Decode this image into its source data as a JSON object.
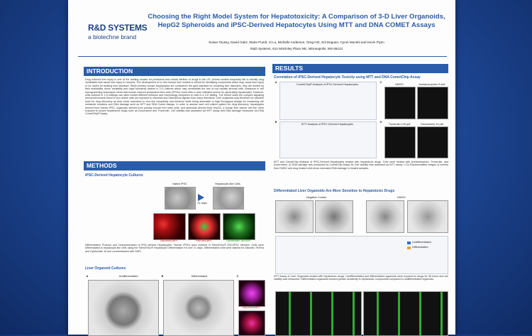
{
  "header": {
    "logo_main": "R&D SYSTEMS",
    "logo_sub": "a biotechne brand",
    "title": "Choosing the Right Model System for Hepatotoxicity: A Comparison of 3-D Liver Organoids, HepG2 Spheroids and iPSC-Derived Hepatocytes Using MTT and DNA COMET Assays",
    "authors": "Susan Tousey, David Gaitz, Marie Pundt, Xi Lu, Michelle Anderson, Greg Hirt, Sol Deguan, Cyrus Munshi and Kevin Flynn",
    "affiliation": "R&D Systems, 614 McKinley Place NE, Minneapolis, MN 55413"
  },
  "introduction": {
    "heading": "INTRODUCTION",
    "text": "Drug induced liver injury is one of the leading causes for preclinical and clinical attrition of drugs in the US. Animal models frequently fail to identify drug candidates that cause liver injury in humans. The development of in vitro human liver models is critical for identifying compounds which may cause liver injury or be useful for treating liver diseases. While primary human hepatocytes are considered the gold standard for modeling liver disorders, they are limited by their availability, donor variability and rapid functional decline in 2-D cultures which may necessitate the use of non-hepatic stromal cells. Advances in cell reprogramming techniques mean that human induced pluripotent stem cells (iPSCs) could offer a near unlimited source for generating hepatocytes. However, cells cultured in 2-D settings can often exhibit different behavior and morphology compared to cells in a 3-D setting. The former lacks the complex signaling microenvironment found in vivo where cells are exposed to chemical and mechanical signals from many directions. Liver organoids may therefore be valuable tools for drug discovery as they could reproduce in vivo like complexity and behavior while being amenable to high throughput assays for measuring cell metabolic functions and DNA damage such as MTT and DNA Comet Assays. In order to assess each cell culture system for drug discovery, hepatocytes derived from human iPSC, organoids derived from primary human liver stem cells, and spheroids derived from HepG2, a human liver cancer cell line, were exposed to known hepatotoxic drugs such as Doxorubicin and Troxerutin. Cell viability was assessed via MTT assay and DNA damage measured via DNA CometChip® Assay."
  },
  "methods": {
    "heading": "METHODS",
    "ipsc_heading": "iPSC-Derived Hepatocyte Cultures",
    "native_label": "Native iPSC",
    "days_label": "21 days",
    "hepatocyte_label": "Hepatocyte-like Cells",
    "stain_labels": [
      "Albumin/DAPI",
      "HNF4α/DAPI",
      "Cytokeratin 18/DAPI"
    ],
    "ipsc_caption": "Differentiation Protocol and Characterization of iPSC-derived Hepatocytes. Human iPSCs were cultured in StemXVivo® ESC/iPSC Medium. Cells were differentiated to hepatocyte-like cells using the StemXVivo® Hepatocyte Differentiation Kit over 21 days. Differentiated cells were stained for Albumin, HNF4α and Cytokeratin 18 and counterstained with DAPI.",
    "organoid_heading": "Liver Organoid Cultures",
    "organoid_panels": [
      "A",
      "B",
      "C"
    ],
    "organoid_labels": [
      "Undifferentiated",
      "Differentiated",
      "Albumin/DAPI"
    ]
  },
  "results": {
    "heading": "RESULTS",
    "correlation_heading": "Correlation of iPSC-Derived Hepatocyte Toxicity using MTT and DNA CometChip Assay",
    "chart_titles": [
      "CometChip® Analysis of iPSC-Derived Hepatocytes",
      "MTT Analysis of iPSC-Derived Hepatocytes"
    ],
    "panels": [
      "A",
      "B",
      "C",
      "D"
    ],
    "image_labels": [
      "DMSO",
      "Acetaminophen 5 mM",
      "Troxerutin 120 µM",
      "Doxorubicin 10 µM"
    ],
    "correlation_caption": "MTT and CometChip Analysis of iPSC-Derived Hepatocytes treated with hepatotoxic drugs. Cells were treated with Acetaminophen, Troxerutin, and Doxorubicin. A) DNA damage was measured by CometChip Assay. B) Cell viability was assessed by MTT assay. C-D) Representative images of comets from DMSO and drug treated cells show increased DNA damage in treated samples.",
    "organoid_heading": "Differentiated Liver Organoids Are More Sensitive to Hepatotoxic Drugs",
    "organoid_image_labels": [
      "Negative Control",
      "DMSO"
    ],
    "legend": [
      "Undifferentiated",
      "Differentiated"
    ],
    "organoid_caption": "MTT Assay of Liver Organoids treated with hepatotoxic drugs. Undifferentiated and differentiated organoids were exposed to drugs for 48 hours and cell viability was measured. Differentiated organoids showed greater sensitivity to hepatotoxic compounds compared to undifferentiated organoids."
  }
}
